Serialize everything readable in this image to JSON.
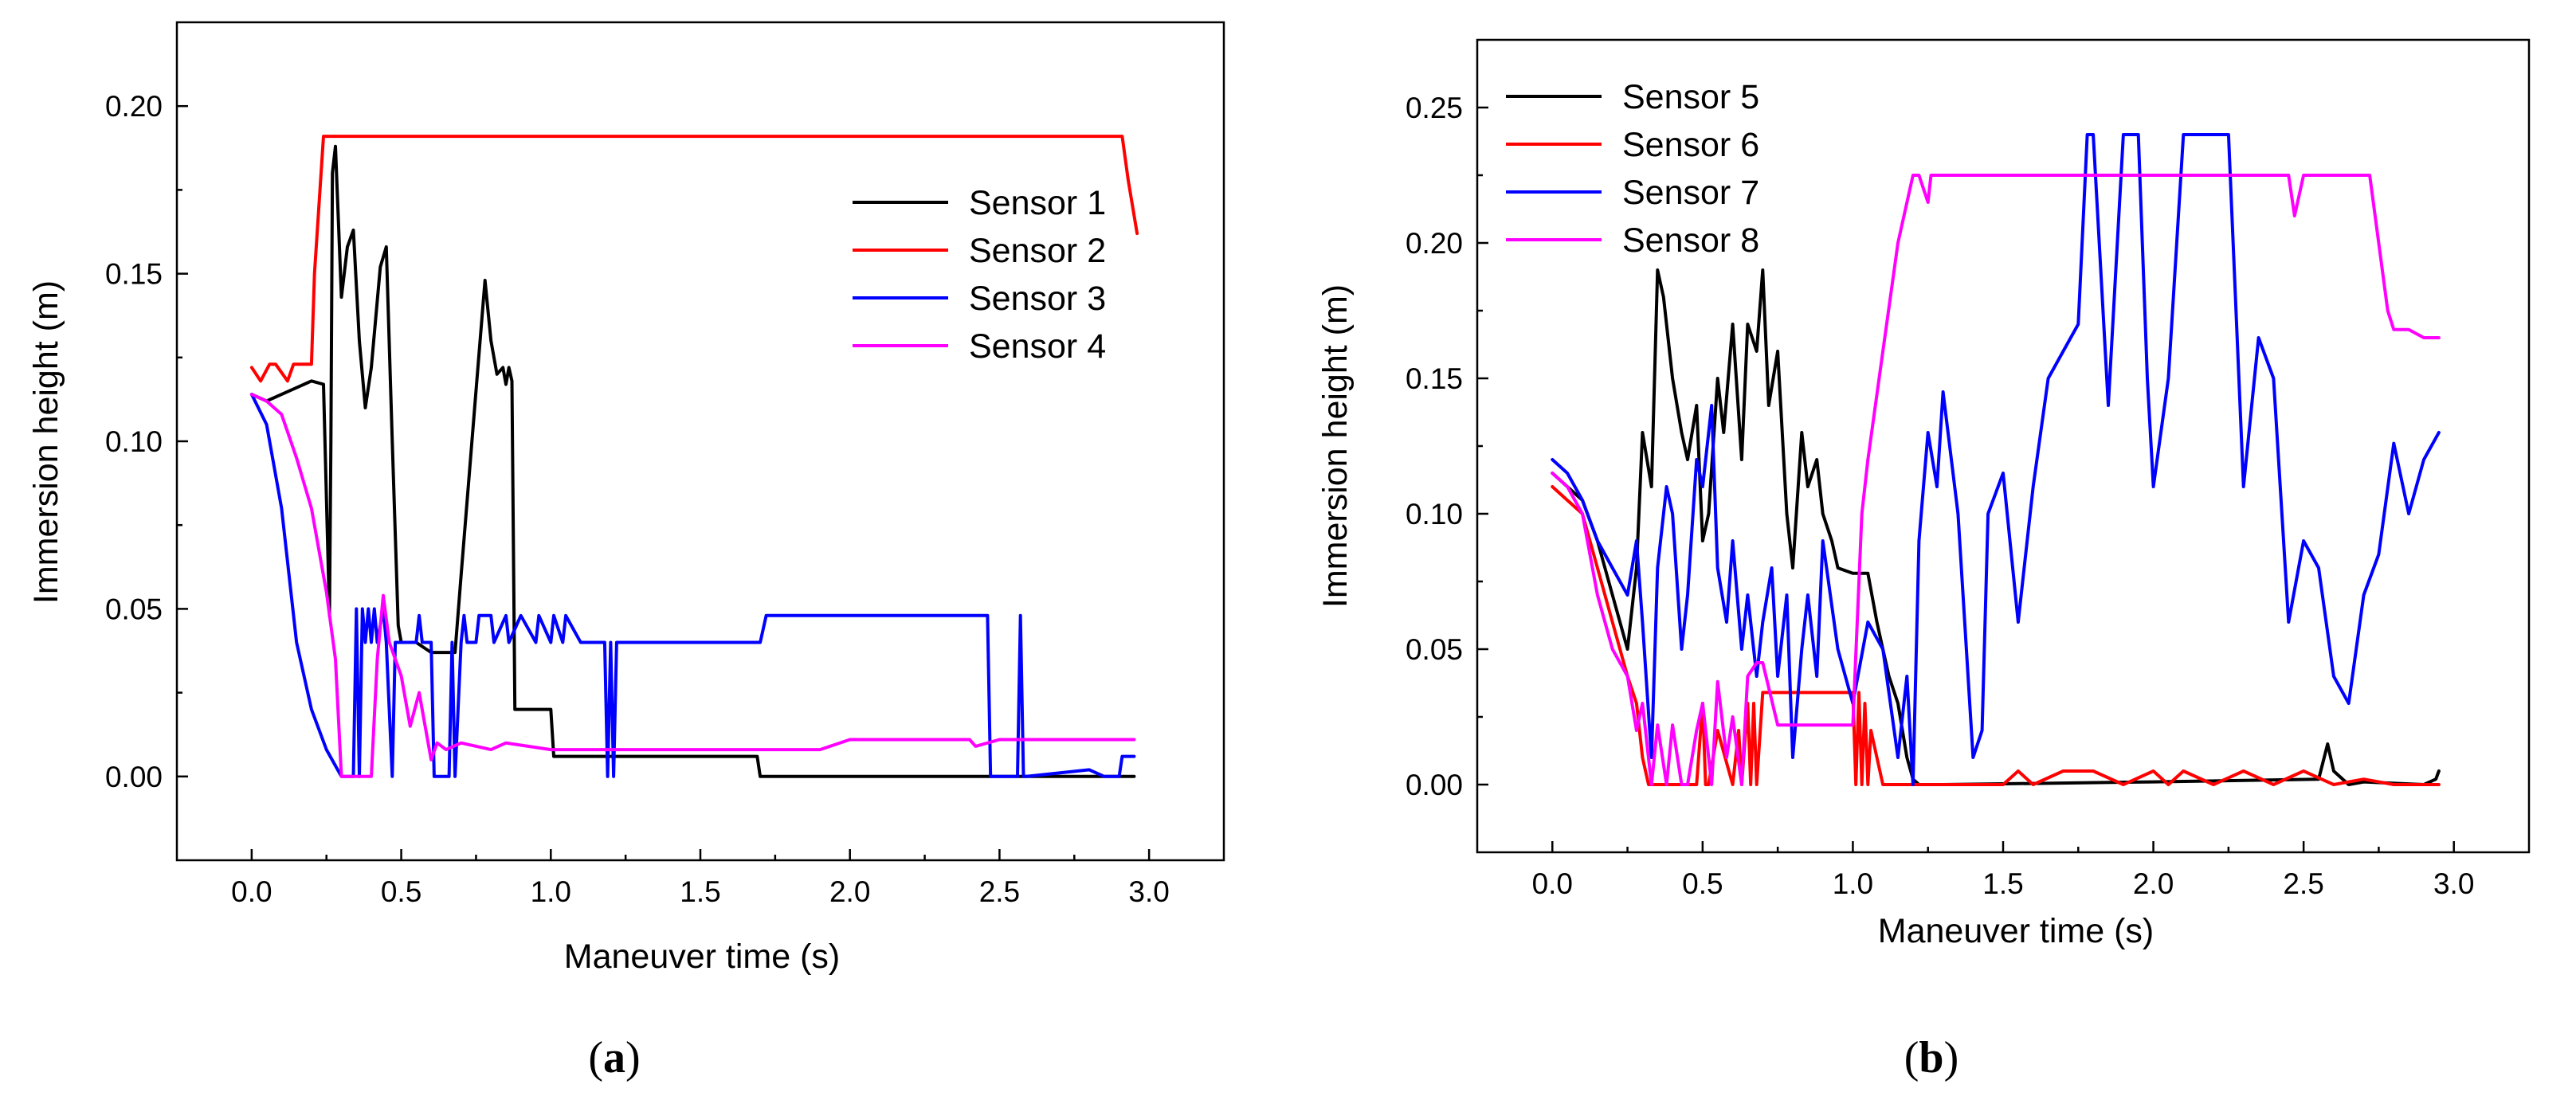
{
  "chart_data": [
    {
      "type": "line",
      "panel_label": "a",
      "xlabel": "Maneuver time (s)",
      "ylabel": "Immersion height (m)",
      "xlim": [
        -0.25,
        3.25
      ],
      "ylim": [
        -0.025,
        0.225
      ],
      "xticks": [
        "0.0",
        "0.5",
        "1.0",
        "1.5",
        "2.0",
        "2.5",
        "3.0"
      ],
      "yticks": [
        "0.00",
        "0.05",
        "0.10",
        "0.15",
        "0.20"
      ],
      "legend_position": "top-right",
      "series": [
        {
          "name": "Sensor 1",
          "color": "#000000",
          "x": [
            0,
            0.05,
            0.1,
            0.15,
            0.2,
            0.24,
            0.26,
            0.265,
            0.27,
            0.28,
            0.3,
            0.32,
            0.34,
            0.36,
            0.38,
            0.4,
            0.43,
            0.45,
            0.47,
            0.49,
            0.5,
            0.55,
            0.6,
            0.65,
            0.68,
            0.7,
            0.75,
            0.78,
            0.8,
            0.82,
            0.84,
            0.85,
            0.86,
            0.87,
            0.88,
            1.0,
            1.01,
            1.3,
            1.69,
            1.7,
            2.0,
            2.5,
            2.95
          ],
          "values": [
            0.114,
            0.112,
            0.114,
            0.116,
            0.118,
            0.117,
            0.048,
            0.1,
            0.18,
            0.188,
            0.143,
            0.158,
            0.163,
            0.13,
            0.11,
            0.122,
            0.152,
            0.158,
            0.1,
            0.045,
            0.04,
            0.04,
            0.037,
            0.037,
            0.037,
            0.06,
            0.115,
            0.148,
            0.13,
            0.12,
            0.122,
            0.117,
            0.122,
            0.118,
            0.02,
            0.02,
            0.006,
            0.006,
            0.006,
            0.0,
            0.0,
            0.0,
            0.0
          ]
        },
        {
          "name": "Sensor 2",
          "color": "#ff0000",
          "x": [
            0,
            0.03,
            0.06,
            0.08,
            0.12,
            0.14,
            0.16,
            0.2,
            0.21,
            0.24,
            0.5,
            1.0,
            1.5,
            2.0,
            2.5,
            2.91,
            2.93,
            2.96
          ],
          "values": [
            0.122,
            0.118,
            0.123,
            0.123,
            0.118,
            0.123,
            0.123,
            0.123,
            0.15,
            0.191,
            0.191,
            0.191,
            0.191,
            0.191,
            0.191,
            0.191,
            0.178,
            0.162
          ]
        },
        {
          "name": "Sensor 3",
          "color": "#0000ff",
          "x": [
            0,
            0.05,
            0.1,
            0.15,
            0.2,
            0.25,
            0.3,
            0.32,
            0.34,
            0.35,
            0.36,
            0.37,
            0.38,
            0.39,
            0.4,
            0.41,
            0.42,
            0.44,
            0.45,
            0.47,
            0.48,
            0.5,
            0.55,
            0.56,
            0.57,
            0.6,
            0.61,
            0.62,
            0.66,
            0.67,
            0.68,
            0.7,
            0.71,
            0.72,
            0.75,
            0.76,
            0.8,
            0.81,
            0.85,
            0.86,
            0.9,
            0.95,
            0.96,
            1.0,
            1.01,
            1.04,
            1.05,
            1.1,
            1.18,
            1.19,
            1.2,
            1.21,
            1.22,
            1.23,
            1.7,
            1.72,
            2.46,
            2.47,
            2.56,
            2.57,
            2.58,
            2.59,
            2.8,
            2.85,
            2.9,
            2.91,
            2.95
          ],
          "values": [
            0.114,
            0.105,
            0.08,
            0.04,
            0.02,
            0.008,
            0.0,
            0.0,
            0.0,
            0.05,
            0.0,
            0.05,
            0.04,
            0.05,
            0.04,
            0.05,
            0.04,
            0.05,
            0.04,
            0.0,
            0.04,
            0.04,
            0.04,
            0.048,
            0.04,
            0.04,
            0.0,
            0.0,
            0.0,
            0.04,
            0.0,
            0.04,
            0.048,
            0.04,
            0.04,
            0.048,
            0.048,
            0.04,
            0.048,
            0.04,
            0.048,
            0.04,
            0.048,
            0.04,
            0.048,
            0.04,
            0.048,
            0.04,
            0.04,
            0.0,
            0.04,
            0.0,
            0.04,
            0.04,
            0.04,
            0.048,
            0.048,
            0.0,
            0.0,
            0.048,
            0.0,
            0.0,
            0.002,
            0.0,
            0.0,
            0.006,
            0.006
          ]
        },
        {
          "name": "Sensor 4",
          "color": "#ff00ff",
          "x": [
            0,
            0.05,
            0.1,
            0.15,
            0.2,
            0.25,
            0.28,
            0.3,
            0.32,
            0.35,
            0.38,
            0.4,
            0.42,
            0.44,
            0.46,
            0.5,
            0.53,
            0.56,
            0.6,
            0.62,
            0.65,
            0.7,
            0.8,
            0.85,
            1.0,
            1.2,
            1.5,
            1.9,
            2.0,
            2.4,
            2.42,
            2.5,
            2.95
          ],
          "values": [
            0.114,
            0.112,
            0.108,
            0.095,
            0.08,
            0.055,
            0.035,
            0.0,
            0.0,
            0.0,
            0.0,
            0.0,
            0.035,
            0.054,
            0.04,
            0.03,
            0.015,
            0.025,
            0.005,
            0.01,
            0.008,
            0.01,
            0.008,
            0.01,
            0.008,
            0.008,
            0.008,
            0.008,
            0.011,
            0.011,
            0.009,
            0.011,
            0.011
          ]
        }
      ]
    },
    {
      "type": "line",
      "panel_label": "b",
      "xlabel": "Maneuver time (s)",
      "ylabel": "Immersion height (m)",
      "xlim": [
        -0.25,
        3.25
      ],
      "ylim": [
        -0.025,
        0.275
      ],
      "xticks": [
        "0.0",
        "0.5",
        "1.0",
        "1.5",
        "2.0",
        "2.5",
        "3.0"
      ],
      "yticks": [
        "0.00",
        "0.05",
        "0.10",
        "0.15",
        "0.20",
        "0.25"
      ],
      "legend_position": "top-left",
      "series": [
        {
          "name": "Sensor 5",
          "color": "#000000",
          "x": [
            0,
            0.05,
            0.1,
            0.15,
            0.2,
            0.25,
            0.28,
            0.3,
            0.33,
            0.35,
            0.37,
            0.4,
            0.43,
            0.45,
            0.48,
            0.5,
            0.52,
            0.55,
            0.57,
            0.6,
            0.63,
            0.65,
            0.68,
            0.7,
            0.72,
            0.75,
            0.78,
            0.8,
            0.83,
            0.85,
            0.88,
            0.9,
            0.93,
            0.95,
            1.0,
            1.05,
            1.08,
            1.1,
            1.12,
            1.15,
            1.18,
            1.2,
            1.22,
            1.3,
            2.0,
            2.55,
            2.58,
            2.6,
            2.65,
            2.7,
            2.9,
            2.94,
            2.95
          ],
          "values": [
            0.115,
            0.11,
            0.105,
            0.09,
            0.07,
            0.05,
            0.08,
            0.13,
            0.11,
            0.19,
            0.18,
            0.15,
            0.13,
            0.12,
            0.14,
            0.09,
            0.1,
            0.15,
            0.13,
            0.17,
            0.12,
            0.17,
            0.16,
            0.19,
            0.14,
            0.16,
            0.1,
            0.08,
            0.13,
            0.11,
            0.12,
            0.1,
            0.09,
            0.08,
            0.078,
            0.078,
            0.06,
            0.05,
            0.04,
            0.03,
            0.01,
            0.002,
            0.0,
            0.0,
            0.001,
            0.002,
            0.015,
            0.005,
            0.0,
            0.001,
            0.0,
            0.002,
            0.005
          ]
        },
        {
          "name": "Sensor 6",
          "color": "#ff0000",
          "x": [
            0,
            0.05,
            0.1,
            0.15,
            0.2,
            0.25,
            0.28,
            0.3,
            0.32,
            0.33,
            0.34,
            0.4,
            0.48,
            0.5,
            0.51,
            0.52,
            0.55,
            0.6,
            0.62,
            0.63,
            0.65,
            0.66,
            0.67,
            0.68,
            0.7,
            0.75,
            1.0,
            1.01,
            1.02,
            1.03,
            1.04,
            1.05,
            1.06,
            1.1,
            1.2,
            1.3,
            1.5,
            1.55,
            1.6,
            1.7,
            1.8,
            1.9,
            2.0,
            2.05,
            2.1,
            2.2,
            2.3,
            2.4,
            2.5,
            2.6,
            2.7,
            2.8,
            2.95
          ],
          "values": [
            0.11,
            0.105,
            0.1,
            0.08,
            0.06,
            0.04,
            0.03,
            0.01,
            0.0,
            0.0,
            0.0,
            0.0,
            0.0,
            0.03,
            0.0,
            0.0,
            0.02,
            0.0,
            0.02,
            0.0,
            0.03,
            0.0,
            0.03,
            0.0,
            0.034,
            0.034,
            0.034,
            0.0,
            0.034,
            0.0,
            0.03,
            0.0,
            0.02,
            0.0,
            0.0,
            0.0,
            0.0,
            0.005,
            0.0,
            0.005,
            0.005,
            0.0,
            0.005,
            0.0,
            0.005,
            0.0,
            0.005,
            0.0,
            0.005,
            0.0,
            0.002,
            0.0,
            0.0
          ]
        },
        {
          "name": "Sensor 7",
          "color": "#0000ff",
          "x": [
            0,
            0.05,
            0.1,
            0.15,
            0.2,
            0.25,
            0.28,
            0.3,
            0.33,
            0.35,
            0.38,
            0.4,
            0.43,
            0.45,
            0.48,
            0.5,
            0.53,
            0.55,
            0.58,
            0.6,
            0.63,
            0.65,
            0.68,
            0.7,
            0.73,
            0.75,
            0.78,
            0.8,
            0.83,
            0.85,
            0.88,
            0.9,
            0.95,
            1.0,
            1.05,
            1.1,
            1.15,
            1.18,
            1.2,
            1.22,
            1.25,
            1.28,
            1.3,
            1.35,
            1.4,
            1.43,
            1.45,
            1.5,
            1.55,
            1.6,
            1.65,
            1.7,
            1.75,
            1.78,
            1.8,
            1.85,
            1.9,
            1.95,
            1.98,
            2.0,
            2.05,
            2.1,
            2.15,
            2.2,
            2.25,
            2.3,
            2.35,
            2.4,
            2.45,
            2.5,
            2.55,
            2.6,
            2.65,
            2.7,
            2.75,
            2.8,
            2.85,
            2.9,
            2.95
          ],
          "values": [
            0.12,
            0.115,
            0.105,
            0.09,
            0.08,
            0.07,
            0.09,
            0.06,
            0.01,
            0.08,
            0.11,
            0.1,
            0.05,
            0.07,
            0.12,
            0.11,
            0.14,
            0.08,
            0.06,
            0.09,
            0.05,
            0.07,
            0.04,
            0.06,
            0.08,
            0.04,
            0.07,
            0.01,
            0.05,
            0.07,
            0.04,
            0.09,
            0.05,
            0.03,
            0.06,
            0.05,
            0.01,
            0.04,
            0.0,
            0.09,
            0.13,
            0.11,
            0.145,
            0.1,
            0.01,
            0.02,
            0.1,
            0.115,
            0.06,
            0.11,
            0.15,
            0.16,
            0.17,
            0.24,
            0.24,
            0.14,
            0.24,
            0.24,
            0.15,
            0.11,
            0.15,
            0.24,
            0.24,
            0.24,
            0.24,
            0.11,
            0.165,
            0.15,
            0.06,
            0.09,
            0.08,
            0.04,
            0.03,
            0.07,
            0.085,
            0.126,
            0.1,
            0.12,
            0.13
          ]
        },
        {
          "name": "Sensor 8",
          "color": "#ff00ff",
          "x": [
            0,
            0.05,
            0.1,
            0.15,
            0.2,
            0.25,
            0.28,
            0.3,
            0.33,
            0.35,
            0.38,
            0.4,
            0.43,
            0.45,
            0.48,
            0.5,
            0.53,
            0.55,
            0.58,
            0.6,
            0.63,
            0.65,
            0.68,
            0.7,
            0.75,
            0.8,
            0.9,
            1.0,
            1.03,
            1.05,
            1.1,
            1.15,
            1.2,
            1.22,
            1.25,
            1.26,
            1.28,
            1.3,
            1.6,
            2.0,
            2.4,
            2.45,
            2.47,
            2.5,
            2.72,
            2.75,
            2.78,
            2.8,
            2.85,
            2.9,
            2.95
          ],
          "values": [
            0.115,
            0.11,
            0.1,
            0.07,
            0.05,
            0.04,
            0.02,
            0.03,
            0.0,
            0.022,
            0.0,
            0.022,
            0.0,
            0.0,
            0.02,
            0.03,
            0.0,
            0.038,
            0.01,
            0.025,
            0.0,
            0.04,
            0.045,
            0.045,
            0.022,
            0.022,
            0.022,
            0.022,
            0.1,
            0.12,
            0.16,
            0.2,
            0.225,
            0.225,
            0.215,
            0.225,
            0.225,
            0.225,
            0.225,
            0.225,
            0.225,
            0.225,
            0.21,
            0.225,
            0.225,
            0.2,
            0.175,
            0.168,
            0.168,
            0.165,
            0.165
          ]
        }
      ]
    }
  ]
}
